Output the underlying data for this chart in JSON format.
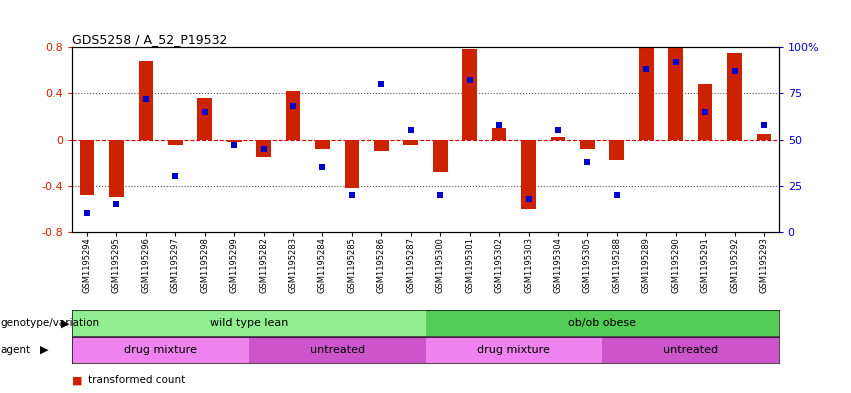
{
  "title": "GDS5258 / A_52_P19532",
  "samples": [
    "GSM1195294",
    "GSM1195295",
    "GSM1195296",
    "GSM1195297",
    "GSM1195298",
    "GSM1195299",
    "GSM1195282",
    "GSM1195283",
    "GSM1195284",
    "GSM1195285",
    "GSM1195286",
    "GSM1195287",
    "GSM1195300",
    "GSM1195301",
    "GSM1195302",
    "GSM1195303",
    "GSM1195304",
    "GSM1195305",
    "GSM1195288",
    "GSM1195289",
    "GSM1195290",
    "GSM1195291",
    "GSM1195292",
    "GSM1195293"
  ],
  "transformed_count": [
    -0.48,
    -0.5,
    0.68,
    -0.05,
    0.36,
    -0.02,
    -0.15,
    0.42,
    -0.08,
    -0.42,
    -0.1,
    -0.05,
    -0.28,
    0.78,
    0.1,
    -0.6,
    0.02,
    -0.08,
    -0.18,
    0.82,
    0.85,
    0.48,
    0.75,
    0.05
  ],
  "percentile_rank": [
    10,
    15,
    72,
    30,
    65,
    47,
    45,
    68,
    35,
    20,
    80,
    55,
    20,
    82,
    58,
    18,
    55,
    38,
    20,
    88,
    92,
    65,
    87,
    58
  ],
  "genotype_groups": [
    {
      "label": "wild type lean",
      "start": 0,
      "end": 11,
      "color": "#90EE90"
    },
    {
      "label": "ob/ob obese",
      "start": 12,
      "end": 23,
      "color": "#55CC55"
    }
  ],
  "agent_groups": [
    {
      "label": "drug mixture",
      "start": 0,
      "end": 5,
      "color": "#EE82EE"
    },
    {
      "label": "untreated",
      "start": 6,
      "end": 11,
      "color": "#CC55CC"
    },
    {
      "label": "drug mixture",
      "start": 12,
      "end": 17,
      "color": "#EE82EE"
    },
    {
      "label": "untreated",
      "start": 18,
      "end": 23,
      "color": "#CC55CC"
    }
  ],
  "ylim": [
    -0.8,
    0.8
  ],
  "y2lim": [
    0,
    100
  ],
  "bar_color": "#CC2200",
  "dot_color": "#0000CC",
  "zero_line_color": "#CC0000",
  "dotted_line_color": "#555555",
  "dotted_vals": [
    0.4,
    -0.4
  ],
  "y2_ticks": [
    0,
    25,
    50,
    75,
    100
  ],
  "y2_labels": [
    "0",
    "25",
    "50",
    "75",
    "100%"
  ],
  "yticks": [
    -0.8,
    -0.4,
    0,
    0.4,
    0.8
  ],
  "ytick_labels": [
    "-0.8",
    "-0.4",
    "0",
    "0.4",
    "0.8"
  ]
}
